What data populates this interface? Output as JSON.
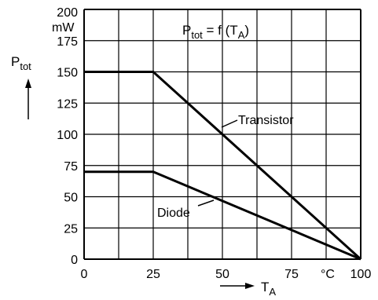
{
  "chart_data": {
    "type": "line",
    "title": "P_tot = f (T_A)",
    "xlabel": "T_A",
    "ylabel": "P_tot",
    "x_unit": "°C",
    "y_unit": "mW",
    "xlim": [
      0,
      100
    ],
    "ylim": [
      0,
      200
    ],
    "x_ticks": [
      0,
      25,
      50,
      75,
      100
    ],
    "y_ticks": [
      0,
      25,
      50,
      75,
      100,
      125,
      150,
      175,
      200
    ],
    "grid": true,
    "series": [
      {
        "name": "Transistor",
        "points": [
          [
            0,
            150
          ],
          [
            25,
            150
          ],
          [
            100,
            0
          ]
        ]
      },
      {
        "name": "Diode",
        "points": [
          [
            0,
            70
          ],
          [
            25,
            70
          ],
          [
            100,
            0
          ]
        ]
      }
    ]
  },
  "text": {
    "title_main": "P",
    "title_sub": "tot",
    "title_mid": " = f (T",
    "title_sub2": "A",
    "title_end": ")",
    "ylabel_main": "P",
    "ylabel_sub": "tot",
    "y_unit": "mW",
    "xlabel_main": "T",
    "xlabel_sub": "A",
    "x_unit": "°C",
    "transistor_label": "Transistor",
    "diode_label": "Diode"
  }
}
